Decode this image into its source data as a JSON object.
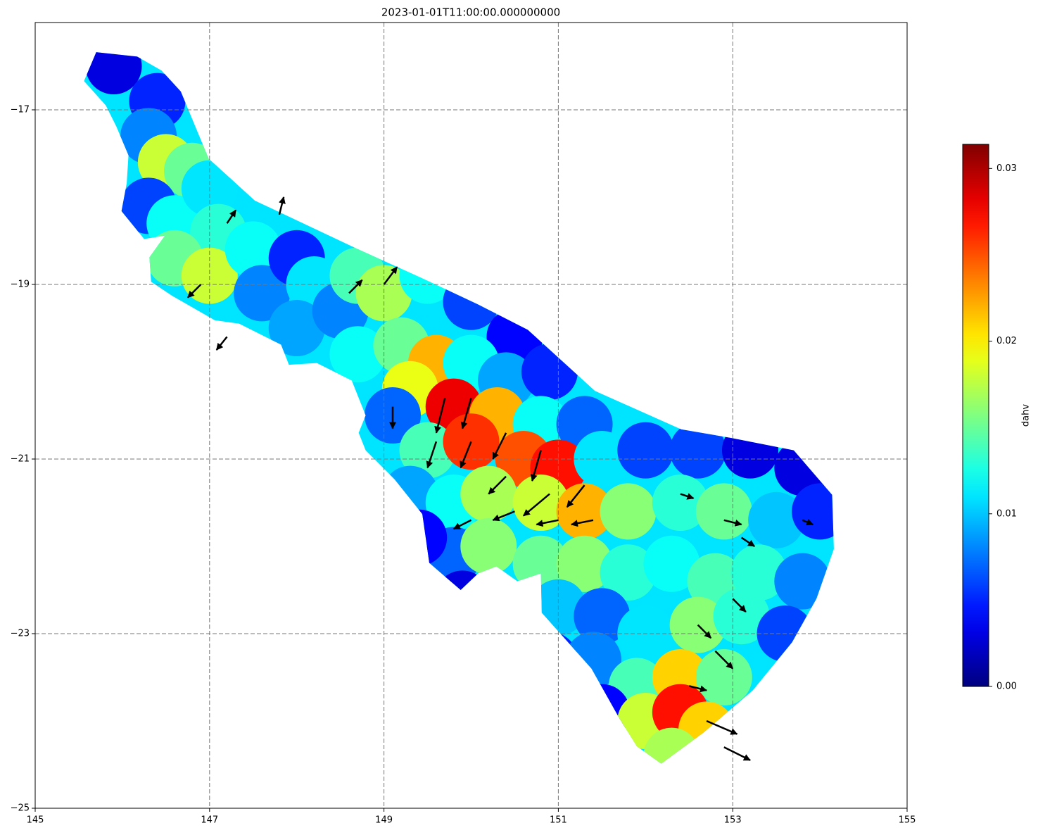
{
  "chart_data": {
    "type": "mesh-map",
    "title": "2023-01-01T11:00:00.000000000",
    "xlim": [
      145,
      155
    ],
    "ylim": [
      -25,
      -16
    ],
    "xticks": [
      145,
      147,
      149,
      151,
      153,
      155
    ],
    "yticks": [
      {
        "value": -25,
        "label": "−25"
      },
      {
        "value": -23,
        "label": "−23"
      },
      {
        "value": -21,
        "label": "−21"
      },
      {
        "value": -19,
        "label": "−19"
      },
      {
        "value": -17,
        "label": "−17"
      }
    ],
    "grid": true,
    "colormap": "jet",
    "colorbar_label": "dahv",
    "clim": [
      0,
      0.0314
    ],
    "colorbar_ticks": [
      {
        "value": 0,
        "label": "0.00"
      },
      0.01,
      0.02,
      0.03
    ],
    "boundary": {
      "lon": [
        145.7,
        146.17,
        146.45,
        146.67,
        146.99,
        147.52,
        148.71,
        149.44,
        150.08,
        150.65,
        151.42,
        152.41,
        152.99,
        153.7,
        154.14,
        154.16,
        153.96,
        153.68,
        153.23,
        152.67,
        152.18,
        151.9,
        151.7,
        151.38,
        150.81,
        150.8,
        150.53,
        150.29,
        150.08,
        149.88,
        149.52,
        149.44,
        149.12,
        148.79,
        148.71,
        148.79,
        148.63,
        148.23,
        147.91,
        147.82,
        147.34,
        147.06,
        146.57,
        146.33,
        146.31,
        146.49,
        146.25,
        145.99,
        146.05,
        146.07,
        145.93,
        145.81,
        145.56
      ],
      "lat": [
        -16.34,
        -16.39,
        -16.55,
        -16.79,
        -17.56,
        -18.04,
        -18.6,
        -18.93,
        -19.23,
        -19.52,
        -20.22,
        -20.66,
        -20.76,
        -20.9,
        -21.41,
        -22.03,
        -22.6,
        -23.1,
        -23.65,
        -24.13,
        -24.49,
        -24.29,
        -23.97,
        -23.4,
        -22.76,
        -22.31,
        -22.4,
        -22.23,
        -22.31,
        -22.5,
        -22.19,
        -21.63,
        -21.23,
        -20.9,
        -20.7,
        -20.5,
        -20.1,
        -19.9,
        -19.92,
        -19.69,
        -19.45,
        -19.41,
        -19.13,
        -18.97,
        -18.69,
        -18.44,
        -18.48,
        -18.16,
        -17.84,
        -17.52,
        -17.19,
        -16.95,
        -16.67
      ]
    },
    "nodes": {
      "lon": [
        145.9,
        146.4,
        146.3,
        146.5,
        146.8,
        146.3,
        146.6,
        147.0,
        147.1,
        146.6,
        147.0,
        147.5,
        147.6,
        148.0,
        148.2,
        148.0,
        148.5,
        148.7,
        149.0,
        149.5,
        150.0,
        150.5,
        148.7,
        149.2,
        149.6,
        150.0,
        150.4,
        150.9,
        149.3,
        149.8,
        150.3,
        150.8,
        151.3,
        149.1,
        149.5,
        150.0,
        150.6,
        151.0,
        151.5,
        152.0,
        152.6,
        153.2,
        153.8,
        149.3,
        149.8,
        150.2,
        150.8,
        151.3,
        151.8,
        152.4,
        152.9,
        153.5,
        154.0,
        149.8,
        150.2,
        150.8,
        151.3,
        151.8,
        152.3,
        152.8,
        153.3,
        153.8,
        151.0,
        151.5,
        152.0,
        152.6,
        153.1,
        153.6,
        150.9,
        151.4,
        151.9,
        152.4,
        152.9,
        151.5,
        152.0,
        152.4,
        152.7,
        152.3,
        149.4,
        149.9
      ],
      "lat": [
        -16.5,
        -16.9,
        -17.3,
        -17.6,
        -17.7,
        -18.1,
        -18.3,
        -17.9,
        -18.4,
        -18.7,
        -18.9,
        -18.6,
        -19.1,
        -18.7,
        -19.0,
        -19.5,
        -19.3,
        -18.9,
        -19.1,
        -18.9,
        -19.2,
        -19.6,
        -19.8,
        -19.7,
        -19.9,
        -19.9,
        -20.1,
        -20.0,
        -20.2,
        -20.4,
        -20.5,
        -20.6,
        -20.6,
        -20.5,
        -20.9,
        -20.8,
        -21.0,
        -21.1,
        -21.0,
        -20.9,
        -20.9,
        -20.9,
        -21.1,
        -21.4,
        -21.5,
        -21.4,
        -21.5,
        -21.6,
        -21.6,
        -21.5,
        -21.6,
        -21.7,
        -21.6,
        -22.1,
        -22.0,
        -22.2,
        -22.2,
        -22.3,
        -22.2,
        -22.4,
        -22.3,
        -22.4,
        -22.7,
        -22.8,
        -23.0,
        -22.9,
        -22.8,
        -23.0,
        -23.3,
        -23.3,
        -23.6,
        -23.5,
        -23.5,
        -23.9,
        -24.0,
        -23.9,
        -24.1,
        -24.4,
        -21.9,
        -22.6
      ],
      "dahv": [
        0.003,
        0.005,
        0.008,
        0.018,
        0.015,
        0.006,
        0.012,
        0.011,
        0.013,
        0.015,
        0.018,
        0.012,
        0.008,
        0.005,
        0.011,
        0.009,
        0.008,
        0.014,
        0.017,
        0.012,
        0.006,
        0.004,
        0.012,
        0.015,
        0.022,
        0.012,
        0.009,
        0.005,
        0.019,
        0.028,
        0.022,
        0.012,
        0.007,
        0.007,
        0.014,
        0.026,
        0.025,
        0.027,
        0.011,
        0.006,
        0.006,
        0.003,
        0.003,
        0.009,
        0.012,
        0.017,
        0.018,
        0.022,
        0.016,
        0.013,
        0.015,
        0.01,
        0.005,
        0.007,
        0.016,
        0.015,
        0.016,
        0.013,
        0.012,
        0.014,
        0.013,
        0.008,
        0.01,
        0.007,
        0.011,
        0.016,
        0.013,
        0.006,
        0.005,
        0.008,
        0.014,
        0.021,
        0.015,
        0.004,
        0.018,
        0.027,
        0.021,
        0.017,
        0.004,
        0.003
      ]
    },
    "arrows": {
      "lon": [
        149.7,
        150.0,
        149.6,
        150.0,
        150.4,
        150.8,
        150.4,
        150.9,
        151.3,
        150.5,
        151.0,
        151.4,
        150.0,
        149.0,
        148.6,
        147.8,
        147.2,
        146.9,
        147.2,
        149.1,
        152.5,
        152.7,
        152.9,
        152.8,
        152.6,
        153.0,
        152.9,
        153.1,
        152.4,
        153.8
      ],
      "lat": [
        -20.3,
        -20.3,
        -20.8,
        -20.8,
        -20.7,
        -20.9,
        -21.2,
        -21.4,
        -21.3,
        -21.6,
        -21.7,
        -21.7,
        -21.7,
        -19.0,
        -19.1,
        -18.2,
        -18.3,
        -19.0,
        -19.6,
        -20.4,
        -23.6,
        -24.0,
        -24.3,
        -23.2,
        -22.9,
        -22.6,
        -21.7,
        -21.9,
        -21.4,
        -21.7
      ],
      "u": [
        -0.1,
        -0.1,
        -0.1,
        -0.12,
        -0.15,
        -0.1,
        -0.2,
        -0.3,
        -0.2,
        -0.25,
        -0.25,
        -0.25,
        -0.2,
        0.15,
        0.15,
        0.05,
        0.1,
        -0.15,
        -0.12,
        0.0,
        0.2,
        0.35,
        0.3,
        0.2,
        0.15,
        0.15,
        0.2,
        0.15,
        0.15,
        0.12
      ],
      "v": [
        -0.4,
        -0.35,
        -0.3,
        -0.3,
        -0.3,
        -0.35,
        -0.2,
        -0.25,
        -0.25,
        -0.1,
        -0.05,
        -0.05,
        -0.1,
        0.2,
        0.15,
        0.2,
        0.15,
        -0.15,
        -0.15,
        -0.25,
        -0.05,
        -0.15,
        -0.15,
        -0.2,
        -0.15,
        -0.15,
        -0.05,
        -0.1,
        -0.05,
        -0.05
      ]
    }
  }
}
